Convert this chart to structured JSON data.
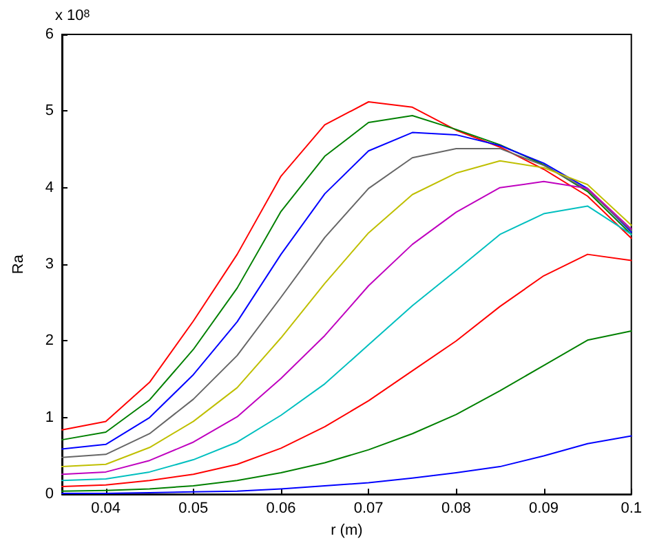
{
  "chart_data": {
    "type": "line",
    "xlabel": "r (m)",
    "ylabel": "Ra",
    "annotations": [
      "x 10$^{8}$"
    ],
    "x": [
      0.035,
      0.04,
      0.045,
      0.05,
      0.055,
      0.06,
      0.065,
      0.07,
      0.075,
      0.08,
      0.085,
      0.09,
      0.095,
      0.1
    ],
    "xlim": [
      0.035,
      0.1
    ],
    "xticks": [
      0.04,
      0.05,
      0.06,
      0.07,
      0.08,
      0.09,
      0.1
    ],
    "ylim": [
      0,
      6
    ],
    "yticks": [
      0,
      1,
      2,
      3,
      4,
      5,
      6
    ],
    "grid": false,
    "marker": "none",
    "line_style": "solid",
    "series": [
      {
        "color": "#ff0000",
        "values": [
          0.84,
          0.95,
          1.46,
          2.26,
          3.13,
          4.15,
          4.82,
          5.12,
          5.05,
          4.75,
          4.53,
          4.24,
          3.89,
          3.34
        ]
      },
      {
        "color": "#008000",
        "values": [
          0.71,
          0.81,
          1.23,
          1.89,
          2.69,
          3.69,
          4.41,
          4.85,
          4.94,
          4.76,
          4.56,
          4.3,
          3.95,
          3.39
        ]
      },
      {
        "color": "#0000ff",
        "values": [
          0.59,
          0.65,
          1.0,
          1.56,
          2.25,
          3.13,
          3.92,
          4.48,
          4.72,
          4.69,
          4.55,
          4.32,
          3.99,
          3.42
        ]
      },
      {
        "color": "#666666",
        "values": [
          0.48,
          0.52,
          0.79,
          1.24,
          1.81,
          2.57,
          3.35,
          3.99,
          4.39,
          4.51,
          4.51,
          4.29,
          3.97,
          3.44
        ]
      },
      {
        "color": "#bfbf00",
        "values": [
          0.36,
          0.39,
          0.61,
          0.95,
          1.39,
          2.04,
          2.75,
          3.41,
          3.91,
          4.19,
          4.35,
          4.26,
          4.04,
          3.51
        ]
      },
      {
        "color": "#bf00bf",
        "values": [
          0.26,
          0.29,
          0.44,
          0.68,
          1.01,
          1.51,
          2.07,
          2.72,
          3.26,
          3.68,
          4.0,
          4.08,
          3.99,
          3.46
        ]
      },
      {
        "color": "#00bfbf",
        "values": [
          0.18,
          0.2,
          0.29,
          0.45,
          0.68,
          1.03,
          1.44,
          1.95,
          2.46,
          2.92,
          3.39,
          3.66,
          3.76,
          3.39
        ]
      },
      {
        "color": "#ff0000",
        "values": [
          0.1,
          0.12,
          0.18,
          0.26,
          0.39,
          0.6,
          0.88,
          1.22,
          1.61,
          2.0,
          2.45,
          2.85,
          3.13,
          3.05
        ]
      },
      {
        "color": "#008000",
        "values": [
          0.04,
          0.05,
          0.07,
          0.11,
          0.18,
          0.28,
          0.41,
          0.58,
          0.79,
          1.04,
          1.35,
          1.68,
          2.01,
          2.13
        ]
      },
      {
        "color": "#0000ff",
        "values": [
          0.01,
          0.01,
          0.02,
          0.03,
          0.04,
          0.07,
          0.11,
          0.15,
          0.21,
          0.28,
          0.36,
          0.5,
          0.66,
          0.76
        ]
      }
    ]
  }
}
